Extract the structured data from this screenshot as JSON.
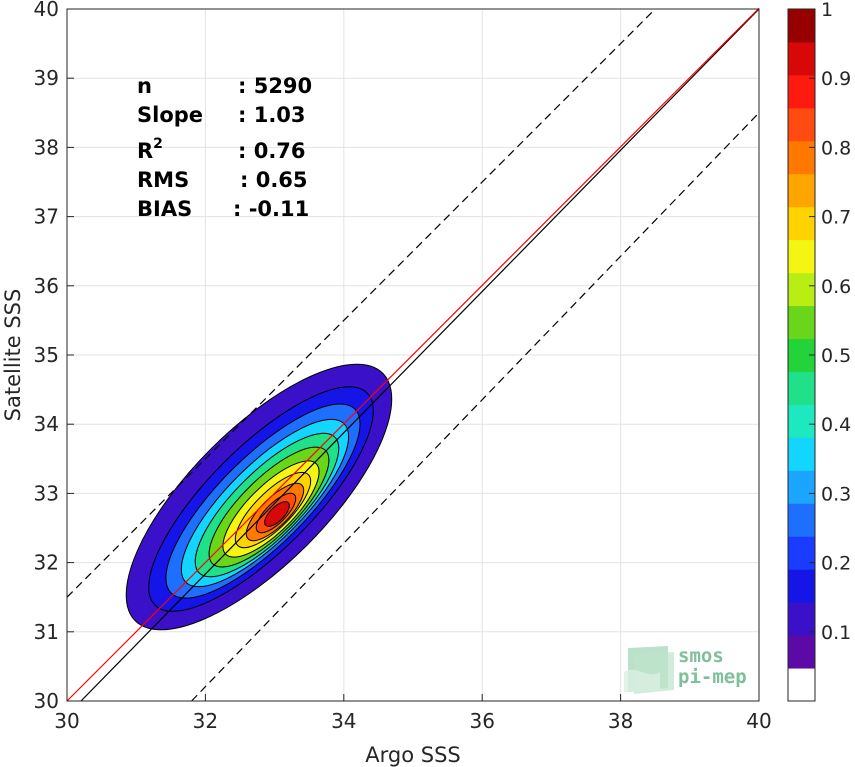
{
  "chart_data": {
    "type": "heatmap",
    "subtype": "density-contour-scatter",
    "xlabel": "Argo SSS",
    "ylabel": "Satellite SSS",
    "xlim": [
      30,
      40
    ],
    "ylim": [
      30,
      40
    ],
    "xticks": [
      "30",
      "32",
      "34",
      "36",
      "38",
      "40"
    ],
    "yticks": [
      "30",
      "31",
      "32",
      "33",
      "34",
      "35",
      "36",
      "37",
      "38",
      "39",
      "40"
    ],
    "grid": true,
    "stats": [
      {
        "label": "n",
        "value": ": 5290"
      },
      {
        "label": "Slope",
        "value": ": 1.03"
      },
      {
        "label": "R",
        "sup": "2",
        "value": ": 0.76"
      },
      {
        "label": "RMS",
        "value": ": 0.65"
      },
      {
        "label": "BIAS",
        "value": ": -0.11"
      }
    ],
    "reference_lines": {
      "identity": {
        "from": [
          30,
          30
        ],
        "to": [
          40,
          40
        ],
        "color": "#000000"
      },
      "regression": {
        "from": [
          30,
          30
        ],
        "to": [
          40,
          40.3
        ],
        "color": "#ff0000"
      },
      "upper_dashed": {
        "from": [
          30,
          31.5
        ],
        "to": [
          38.5,
          40
        ],
        "color": "#000000"
      },
      "lower_dashed": {
        "from": [
          31.8,
          30
        ],
        "to": [
          40,
          38.5
        ],
        "color": "#000000"
      }
    },
    "density_peak": {
      "x": 33.15,
      "y": 33.15
    },
    "contour_levels": [
      0.05,
      0.1,
      0.2,
      0.3,
      0.4,
      0.5,
      0.6,
      0.7,
      0.8,
      0.9
    ],
    "colorbar": {
      "ticks": [
        "0.1",
        "0.2",
        "0.3",
        "0.4",
        "0.5",
        "0.6",
        "0.7",
        "0.8",
        "0.9",
        "1"
      ],
      "colors": [
        "#ffffff",
        "#5b0aa8",
        "#3a10c8",
        "#1515e8",
        "#1a3cff",
        "#1f6fff",
        "#1aa5ff",
        "#14d5ff",
        "#1ee8c0",
        "#20e08a",
        "#22d43a",
        "#6ad61a",
        "#b8ee14",
        "#f5f514",
        "#ffd200",
        "#ffa500",
        "#ff7800",
        "#ff4a10",
        "#ff1a10",
        "#d80808",
        "#980000"
      ]
    }
  },
  "watermark": {
    "line1": "smos",
    "line2": "pi-mep"
  }
}
